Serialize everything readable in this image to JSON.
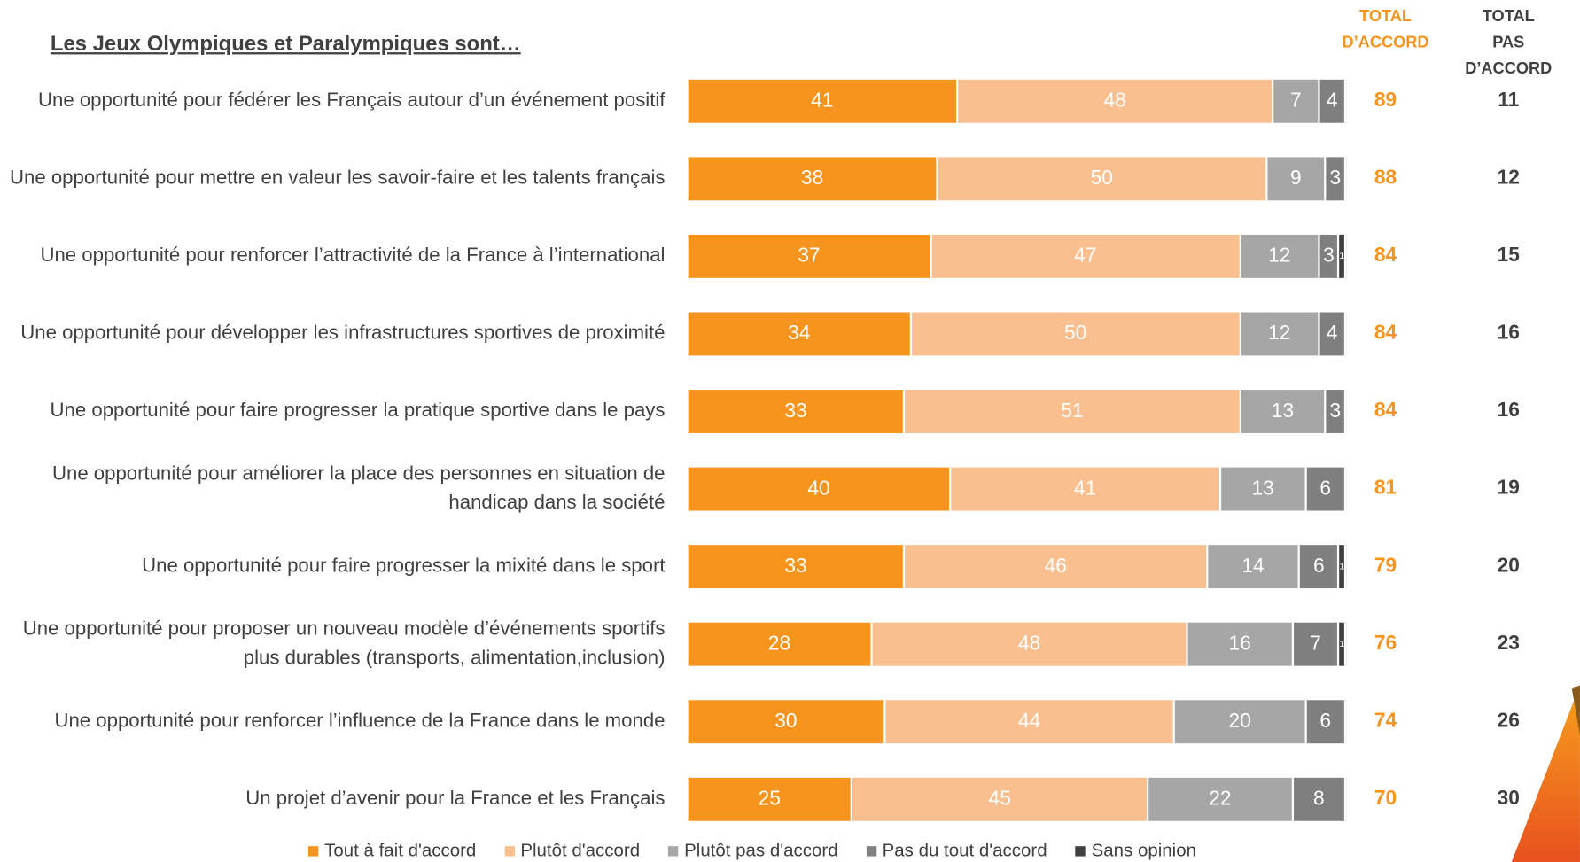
{
  "chart_data": {
    "type": "stacked-bar",
    "title": "Les Jeux Olympiques et Paralympiques sont…",
    "categories": [
      "Une opportunité pour fédérer les Français autour d’un événement positif",
      "Une opportunité pour mettre en valeur les savoir-faire et les talents français",
      "Une opportunité pour renforcer l’attractivité de la France à l’international",
      "Une opportunité pour développer les infrastructures sportives de proximité",
      "Une opportunité pour faire progresser la pratique sportive dans le pays",
      "Une opportunité pour améliorer la place des personnes en situation de handicap dans la société",
      "Une opportunité pour faire progresser la mixité dans le sport",
      "Une opportunité pour proposer un nouveau modèle d’événements sportifs plus durables (transports, alimentation,inclusion)",
      "Une opportunité pour renforcer l’influence de la France dans le monde",
      "Un projet d’avenir pour la France et les Français"
    ],
    "xlim": [
      0,
      100
    ],
    "series": [
      {
        "name": "Tout à fait d'accord",
        "color": "#f7941d",
        "values": [
          41,
          38,
          37,
          34,
          33,
          40,
          33,
          28,
          30,
          25
        ]
      },
      {
        "name": "Plutôt d'accord",
        "color": "#f9bf8f",
        "values": [
          48,
          50,
          47,
          50,
          51,
          41,
          46,
          48,
          44,
          45
        ]
      },
      {
        "name": "Plutôt pas d'accord",
        "color": "#a6a6a6",
        "values": [
          7,
          9,
          12,
          12,
          13,
          13,
          14,
          16,
          20,
          22
        ]
      },
      {
        "name": "Pas du tout d'accord",
        "color": "#7f7f7f",
        "values": [
          4,
          3,
          3,
          4,
          3,
          6,
          6,
          7,
          6,
          8
        ]
      },
      {
        "name": "Sans opinion",
        "color": "#404040",
        "values": [
          null,
          null,
          1,
          null,
          null,
          null,
          1,
          1,
          null,
          null
        ]
      }
    ],
    "totals": [
      {
        "name": [
          "TOTAL",
          "D’ACCORD"
        ],
        "color": "#f7941d",
        "values": [
          89,
          88,
          84,
          84,
          84,
          81,
          79,
          76,
          74,
          70
        ]
      },
      {
        "name": [
          "TOTAL",
          "PAS D’ACCORD"
        ],
        "color": "#404040",
        "values": [
          11,
          12,
          15,
          16,
          16,
          19,
          20,
          23,
          26,
          30
        ]
      }
    ]
  }
}
